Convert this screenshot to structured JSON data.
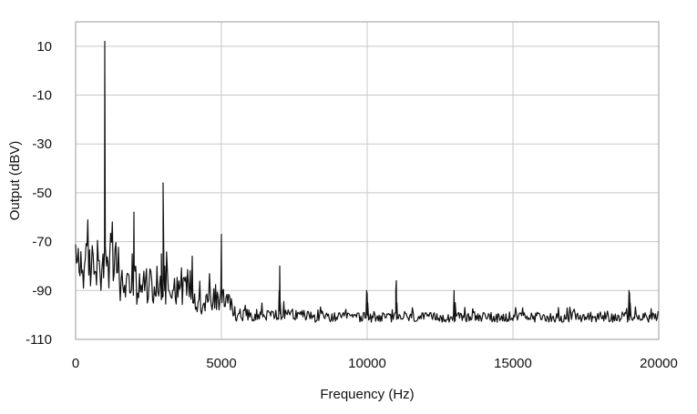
{
  "chart_data": {
    "type": "line",
    "title": "",
    "xlabel": "Frequency (Hz)",
    "ylabel": "Output (dBV)",
    "xlim": [
      0,
      20000
    ],
    "ylim": [
      -110,
      20
    ],
    "x_ticks": [
      0,
      5000,
      10000,
      15000,
      20000
    ],
    "x_tick_labels": [
      "0",
      "5000",
      "10000",
      "15000",
      "20000"
    ],
    "y_ticks": [
      10,
      -10,
      -30,
      -50,
      -70,
      -90,
      -110
    ],
    "y_tick_labels": [
      "10",
      "-10",
      "-30",
      "-50",
      "-70",
      "-90",
      "-110"
    ],
    "grid": true,
    "legend": "none",
    "line_color": "#111111",
    "grid_color": "#c8c8c8",
    "noise_floor": {
      "segments": [
        {
          "from": 0,
          "to": 1500,
          "level": -80,
          "spread": 20
        },
        {
          "from": 1500,
          "to": 4000,
          "level": -88,
          "spread": 16
        },
        {
          "from": 4000,
          "to": 5400,
          "level": -94,
          "spread": 12
        },
        {
          "from": 5400,
          "to": 8000,
          "level": -100,
          "spread": 5
        },
        {
          "from": 8000,
          "to": 20000,
          "level": -101,
          "spread": 4
        }
      ],
      "step": 30
    },
    "peaks": [
      {
        "x": 1000,
        "y": 12
      },
      {
        "x": 2000,
        "y": -58
      },
      {
        "x": 3000,
        "y": -46
      },
      {
        "x": 4000,
        "y": -76
      },
      {
        "x": 5000,
        "y": -67
      },
      {
        "x": 7000,
        "y": -80
      },
      {
        "x": 10000,
        "y": -91
      },
      {
        "x": 11000,
        "y": -86
      },
      {
        "x": 13000,
        "y": -95
      },
      {
        "x": 19000,
        "y": -91
      }
    ]
  }
}
